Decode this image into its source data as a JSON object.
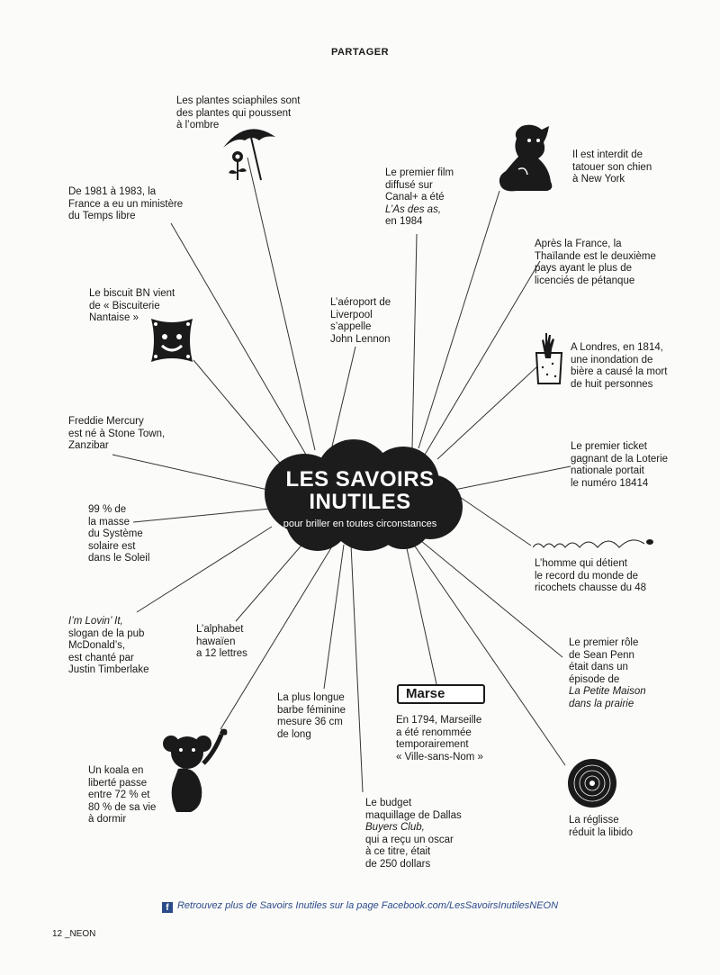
{
  "header": "PARTAGER",
  "center": {
    "title_lines": [
      "LES SAVOIRS",
      "INUTILES"
    ],
    "subtitle": "pour briller en toutes circonstances"
  },
  "facts": [
    {
      "id": "sciaphiles",
      "lines": [
        "Les plantes sciaphiles sont",
        "des plantes qui poussent",
        "à l’ombre"
      ]
    },
    {
      "id": "canal",
      "lines": [
        "Le premier film",
        "diffusé sur",
        "Canal+ a été",
        "L’As des as,",
        "en 1984"
      ]
    },
    {
      "id": "chien",
      "lines": [
        "Il est interdit de",
        "tatouer son chien",
        "à New York"
      ]
    },
    {
      "id": "temps-libre",
      "lines": [
        "De 1981 à 1983, la",
        "France a eu un ministère",
        "du Temps libre"
      ]
    },
    {
      "id": "petanque",
      "lines": [
        "Après la France, la",
        "Thaïlande est le deuxième",
        "pays ayant le plus de",
        "licenciés de pétanque"
      ]
    },
    {
      "id": "bn",
      "lines": [
        "Le biscuit BN vient",
        "de « Biscuiterie",
        "Nantaise »"
      ]
    },
    {
      "id": "liverpool",
      "lines": [
        "L’aéroport de",
        "Liverpool",
        "s’appelle",
        "John Lennon"
      ]
    },
    {
      "id": "londres",
      "lines": [
        "A Londres, en 1814,",
        "une inondation de",
        "bière a causé la mort",
        "de huit personnes"
      ]
    },
    {
      "id": "mercury",
      "lines": [
        "Freddie Mercury",
        "est né à Stone Town,",
        "Zanzibar"
      ]
    },
    {
      "id": "loterie",
      "lines": [
        "Le premier ticket",
        "gagnant de la Loterie",
        "nationale portait",
        "le numéro 18414"
      ]
    },
    {
      "id": "soleil",
      "lines": [
        "99 % de",
        "la masse",
        "du Système",
        "solaire est",
        "dans le Soleil"
      ]
    },
    {
      "id": "ricochets",
      "lines": [
        "L’homme qui détient",
        "le record du monde de",
        "ricochets chausse du 48"
      ]
    },
    {
      "id": "lovin",
      "lines": [
        "I’m Lovin’ It,",
        "slogan de la pub",
        "McDonald’s,",
        "est chanté par",
        "Justin Timberlake"
      ]
    },
    {
      "id": "hawaien",
      "lines": [
        "L’alphabet",
        "hawaïen",
        "a 12 lettres"
      ]
    },
    {
      "id": "sean-penn",
      "lines": [
        "Le premier rôle",
        "de Sean Penn",
        "était dans un",
        "épisode de",
        "La Petite Maison",
        "dans la prairie"
      ]
    },
    {
      "id": "barbe",
      "lines": [
        "La plus longue",
        "barbe féminine",
        "mesure 36 cm",
        "de long"
      ]
    },
    {
      "id": "marseille",
      "lines": [
        "En 1794, Marseille",
        "a été renommée",
        "temporairement",
        "« Ville-sans-Nom »"
      ]
    },
    {
      "id": "koala",
      "lines": [
        "Un koala en",
        "liberté passe",
        "entre 72 % et",
        "80 % de sa vie",
        "à dormir"
      ]
    },
    {
      "id": "dallas",
      "lines": [
        "Le budget",
        "maquillage de Dallas",
        "Buyers Club,",
        "qui a reçu un oscar",
        "à ce titre, était",
        "de 250 dollars"
      ]
    },
    {
      "id": "reglisse",
      "lines": [
        "La réglisse",
        "réduit la libido"
      ]
    }
  ],
  "marseille_sign": "Marse",
  "footer": "Retrouvez plus de Savoirs Inutiles sur la page Facebook.com/LesSavoirsInutilesNEON",
  "facebook_icon": "f",
  "page_number": "12 _NEON",
  "icons": [
    "umbrella-flower-icon",
    "dog-icon",
    "bn-biscuit-icon",
    "beer-glass-hand-icon",
    "pebble-ricochet-icon",
    "koala-icon",
    "marseille-sign-icon",
    "licorice-wheel-icon"
  ],
  "colors": {
    "ink": "#1a1a1a",
    "cloud": "#1c1c1c",
    "link": "#2b4a8a",
    "paper": "#fbfbf9"
  }
}
